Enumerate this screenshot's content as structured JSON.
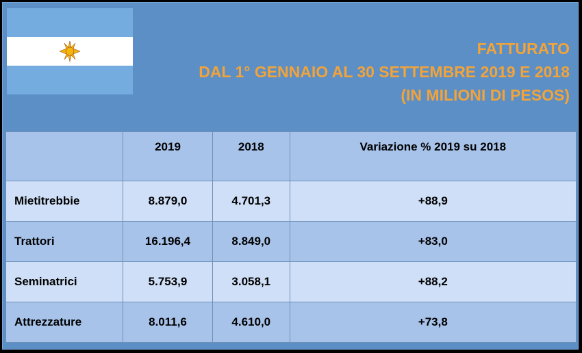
{
  "header": {
    "title": [
      "FATTURATO",
      "DAL 1° GENNAIO AL 30 SETTEMBRE 2019 E 2018",
      "(IN MILIONI DI  PESOS)"
    ]
  },
  "table": {
    "columns": [
      "2019",
      "2018",
      "Variazione %  2019 su 2018"
    ],
    "rows": [
      [
        "Mietitrebbie",
        "8.879,0",
        "4.701,3",
        "+88,9"
      ],
      [
        "Trattori",
        "16.196,4",
        "8.849,0",
        "+83,0"
      ],
      [
        "Seminatrici",
        "5.753,9",
        "3.058,1",
        "+88,2"
      ],
      [
        "Attrezzature",
        "8.011,6",
        "4.610,0",
        "+73,8"
      ]
    ]
  }
}
